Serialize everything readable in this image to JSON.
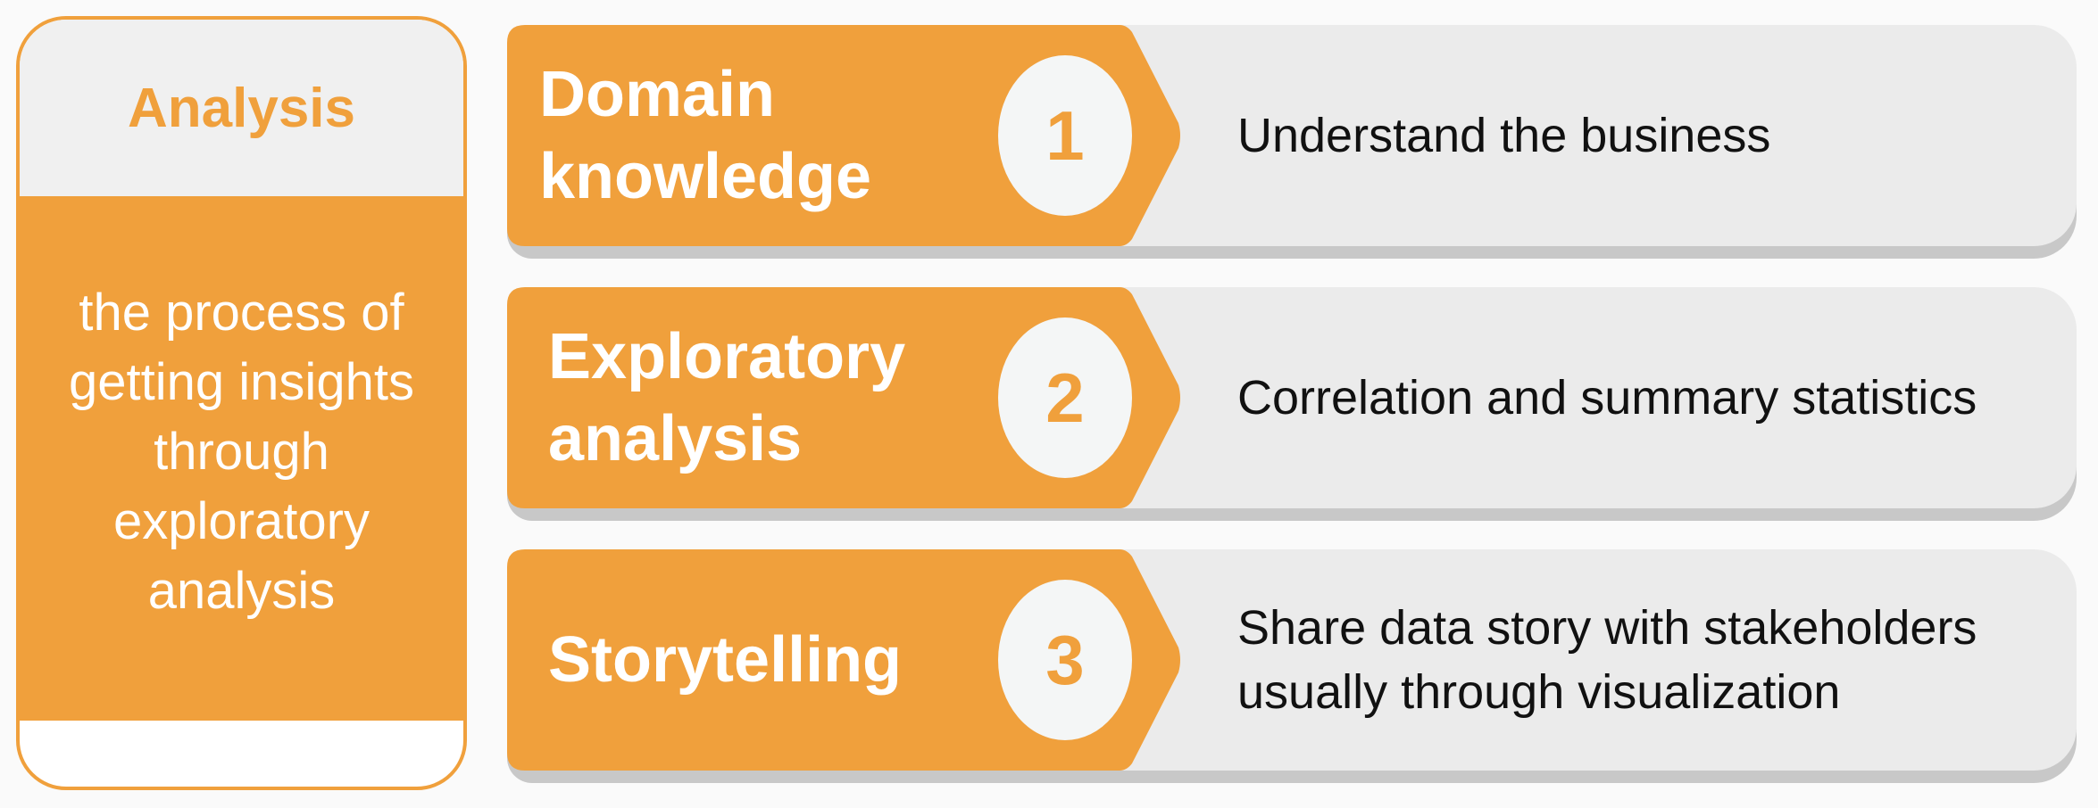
{
  "side_panel": {
    "title": "Analysis",
    "description": "the process of getting insights through exploratory analysis"
  },
  "steps": [
    {
      "number": "1",
      "title": "Domain knowledge",
      "description": "Understand the business"
    },
    {
      "number": "2",
      "title": "Exploratory analysis",
      "description": "Correlation and summary statistics"
    },
    {
      "number": "3",
      "title": "Storytelling",
      "description": "Share data story with stakeholders usually through visualization"
    }
  ],
  "colors": {
    "accent": "#f0a03c",
    "row_background": "#ebebeb",
    "shadow": "#c8c8c8",
    "circle": "#f4f6f6",
    "text_dark": "#111111"
  }
}
